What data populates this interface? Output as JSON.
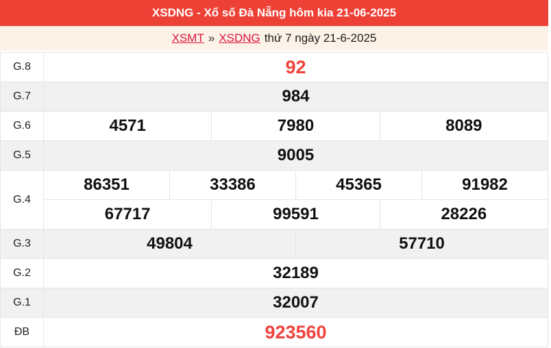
{
  "header": {
    "title": "XSDNG - Xổ số Đà Nẵng hôm kia 21-06-2025",
    "bg": "#ee4136",
    "text_color": "#ffffff"
  },
  "breadcrumb": {
    "bg": "#fcf2e7",
    "link_color": "#dc143c",
    "links": [
      {
        "label": "XSMT"
      },
      {
        "label": "XSDNG"
      }
    ],
    "separator": "»",
    "suffix": "thứ 7 ngày 21-6-2025"
  },
  "results": {
    "accent_color": "#f0423c",
    "grid_color": "#e4e4e4",
    "alt_row_bg": "#f1f1f1",
    "rows": [
      {
        "key": "g8",
        "label": "G.8",
        "highlight": true,
        "cells": [
          [
            "92"
          ]
        ]
      },
      {
        "key": "g7",
        "label": "G.7",
        "highlight": false,
        "cells": [
          [
            "984"
          ]
        ]
      },
      {
        "key": "g6",
        "label": "G.6",
        "highlight": false,
        "cells": [
          [
            "4571",
            "7980",
            "8089"
          ]
        ]
      },
      {
        "key": "g5",
        "label": "G.5",
        "highlight": false,
        "cells": [
          [
            "9005"
          ]
        ]
      },
      {
        "key": "g4",
        "label": "G.4",
        "highlight": false,
        "cells": [
          [
            "86351",
            "33386",
            "45365",
            "91982"
          ],
          [
            "67717",
            "99591",
            "28226"
          ]
        ]
      },
      {
        "key": "g3",
        "label": "G.3",
        "highlight": false,
        "cells": [
          [
            "49804",
            "57710"
          ]
        ]
      },
      {
        "key": "g2",
        "label": "G.2",
        "highlight": false,
        "cells": [
          [
            "32189"
          ]
        ]
      },
      {
        "key": "g1",
        "label": "G.1",
        "highlight": false,
        "cells": [
          [
            "32007"
          ]
        ]
      },
      {
        "key": "db",
        "label": "ĐB",
        "highlight": true,
        "cells": [
          [
            "923560"
          ]
        ]
      }
    ]
  }
}
